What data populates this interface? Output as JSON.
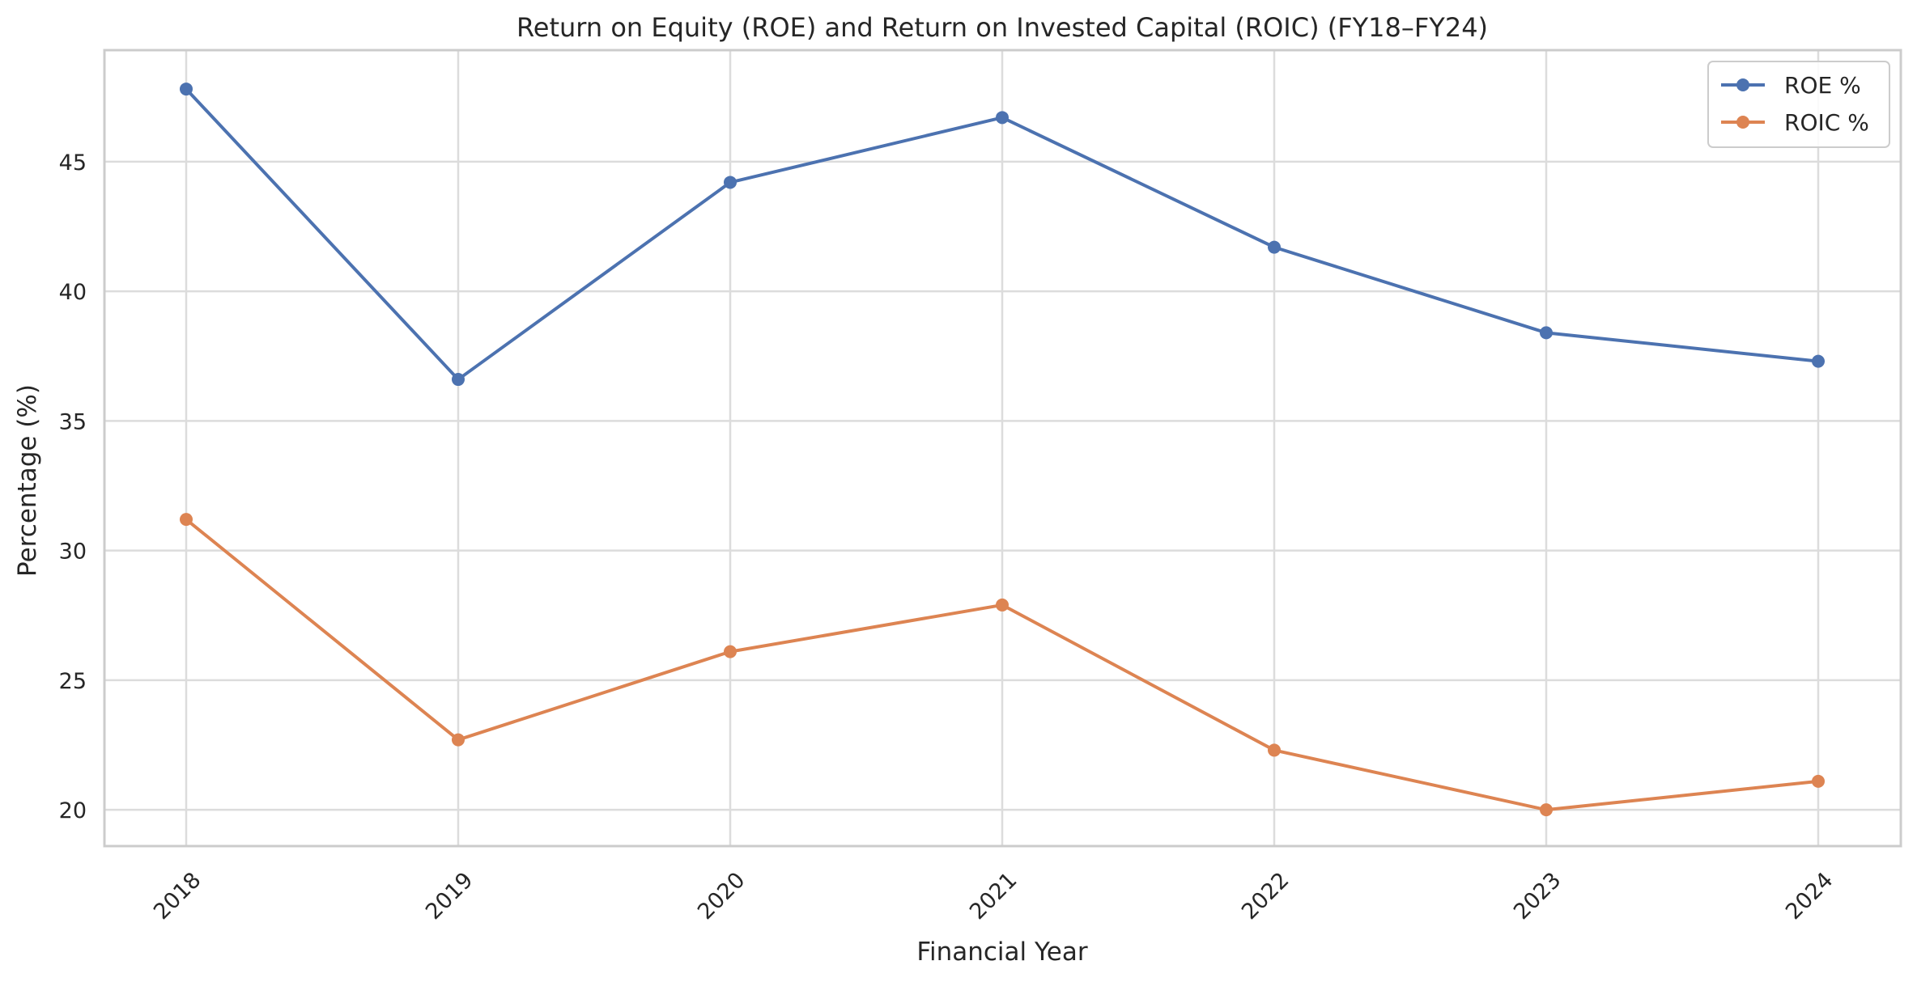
{
  "chart_data": {
    "type": "line",
    "title": "Return on Equity (ROE) and Return on Invested Capital (ROIC) (FY18–FY24)",
    "xlabel": "Financial Year",
    "ylabel": "Percentage (%)",
    "x": [
      "2018",
      "2019",
      "2020",
      "2021",
      "2022",
      "2023",
      "2024"
    ],
    "series": [
      {
        "name": "ROE %",
        "color": "#4c72b0",
        "values": [
          47.8,
          36.6,
          44.2,
          46.7,
          41.7,
          38.4,
          37.3
        ]
      },
      {
        "name": "ROIC %",
        "color": "#dd8452",
        "values": [
          31.2,
          22.7,
          26.1,
          27.9,
          22.3,
          20.0,
          21.1
        ]
      }
    ],
    "ylim": [
      18.6,
      49.3
    ],
    "yticks": [
      20,
      25,
      30,
      35,
      40,
      45
    ],
    "grid": true,
    "legend": "top-right",
    "marker": "circle"
  }
}
